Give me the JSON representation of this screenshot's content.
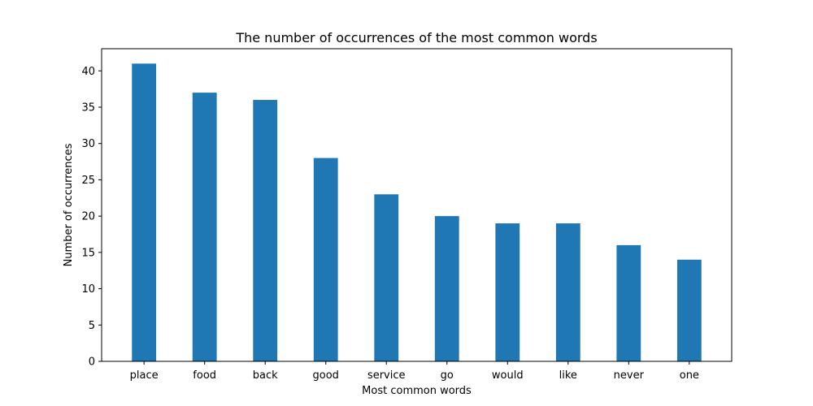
{
  "chart_data": {
    "type": "bar",
    "title": "The number of occurrences of the most common words",
    "xlabel": "Most common words",
    "ylabel": "Number of occurrences",
    "categories": [
      "place",
      "food",
      "back",
      "good",
      "service",
      "go",
      "would",
      "like",
      "never",
      "one"
    ],
    "values": [
      41,
      37,
      36,
      28,
      23,
      20,
      19,
      19,
      16,
      14
    ],
    "ylim": [
      0,
      43.05
    ],
    "yticks": [
      0,
      5,
      10,
      15,
      20,
      25,
      30,
      35,
      40
    ],
    "grid": false,
    "bar_color": "#1f77b4"
  }
}
